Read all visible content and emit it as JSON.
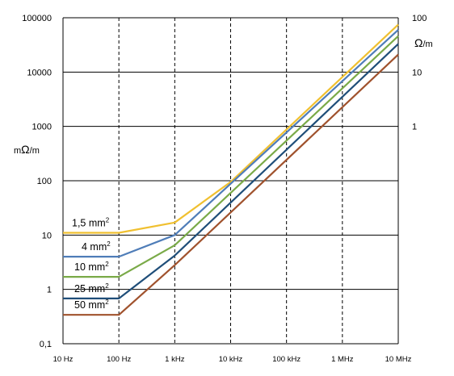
{
  "chart_data": {
    "type": "line",
    "x_scale": "log",
    "y_scale": "log",
    "x_ticks": [
      10,
      100,
      1000,
      10000,
      100000,
      1000000,
      10000000
    ],
    "x_tick_labels": [
      "10 Hz",
      "100 Hz",
      "1 kHz",
      "10 kHz",
      "100 kHz",
      "1 MHz",
      "10 MHz"
    ],
    "y_ticks": [
      0.1,
      1,
      10,
      100,
      1000,
      10000,
      100000
    ],
    "y_tick_labels": [
      "0,1",
      "1",
      "10",
      "100",
      "1000",
      "10000",
      "100000"
    ],
    "y_left_unit_prefix": "m",
    "y_left_unit_symbol": "Ω",
    "y_left_unit_suffix": "/m",
    "y_right_unit_symbol": "Ω",
    "y_right_unit_suffix": "/m",
    "y_right_ticks": [
      1000,
      10000,
      100000
    ],
    "y_right_tick_labels": [
      "1",
      "10",
      "100"
    ],
    "xlim": [
      10,
      10000000
    ],
    "ylim": [
      0.1,
      100000
    ],
    "grid": {
      "x": "dashed",
      "y": "solid"
    },
    "series": [
      {
        "name": "1,5 mm",
        "label_sup": "2",
        "color": "#F0C030",
        "x": [
          10,
          100,
          1000,
          10000,
          10000000
        ],
        "y": [
          11,
          11,
          17,
          95,
          75000
        ]
      },
      {
        "name": "4 mm",
        "label_sup": "2",
        "color": "#4F7DB8",
        "x": [
          10,
          100,
          1000,
          10000000
        ],
        "y": [
          4,
          4,
          10,
          60000
        ]
      },
      {
        "name": "10 mm",
        "label_sup": "2",
        "color": "#7AAA48",
        "x": [
          10,
          100,
          1000,
          10000000
        ],
        "y": [
          1.7,
          1.7,
          6.5,
          46000
        ]
      },
      {
        "name": "25 mm",
        "label_sup": "2",
        "color": "#1F4E79",
        "x": [
          10,
          100,
          1000,
          10000000
        ],
        "y": [
          0.68,
          0.68,
          4.2,
          33000
        ]
      },
      {
        "name": "50 mm",
        "label_sup": "2",
        "color": "#A0522D",
        "x": [
          10,
          100,
          1000,
          10000000
        ],
        "y": [
          0.34,
          0.34,
          2.8,
          21000
        ]
      }
    ]
  }
}
